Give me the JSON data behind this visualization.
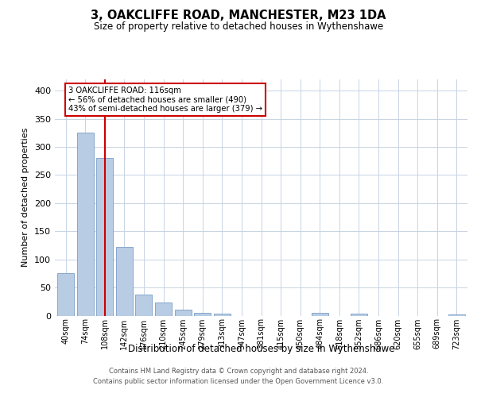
{
  "title1": "3, OAKCLIFFE ROAD, MANCHESTER, M23 1DA",
  "title2": "Size of property relative to detached houses in Wythenshawe",
  "xlabel": "Distribution of detached houses by size in Wythenshawe",
  "ylabel": "Number of detached properties",
  "footer1": "Contains HM Land Registry data © Crown copyright and database right 2024.",
  "footer2": "Contains public sector information licensed under the Open Government Licence v3.0.",
  "categories": [
    "40sqm",
    "74sqm",
    "108sqm",
    "142sqm",
    "176sqm",
    "210sqm",
    "245sqm",
    "279sqm",
    "313sqm",
    "347sqm",
    "381sqm",
    "415sqm",
    "450sqm",
    "484sqm",
    "518sqm",
    "552sqm",
    "586sqm",
    "620sqm",
    "655sqm",
    "689sqm",
    "723sqm"
  ],
  "values": [
    75,
    325,
    280,
    122,
    38,
    23,
    11,
    5,
    3,
    0,
    0,
    0,
    0,
    5,
    0,
    3,
    0,
    0,
    0,
    0,
    2
  ],
  "bar_color": "#b8cce4",
  "bar_edgecolor": "#7a9ec7",
  "grid_color": "#c8d4e3",
  "background_color": "#ffffff",
  "red_line_index": 2,
  "annotation_line1": "3 OAKCLIFFE ROAD: 116sqm",
  "annotation_line2": "← 56% of detached houses are smaller (490)",
  "annotation_line3": "43% of semi-detached houses are larger (379) →",
  "annotation_box_color": "#ffffff",
  "annotation_box_edgecolor": "#cc0000",
  "red_line_color": "#cc0000",
  "ylim": [
    0,
    420
  ],
  "yticks": [
    0,
    50,
    100,
    150,
    200,
    250,
    300,
    350,
    400
  ]
}
